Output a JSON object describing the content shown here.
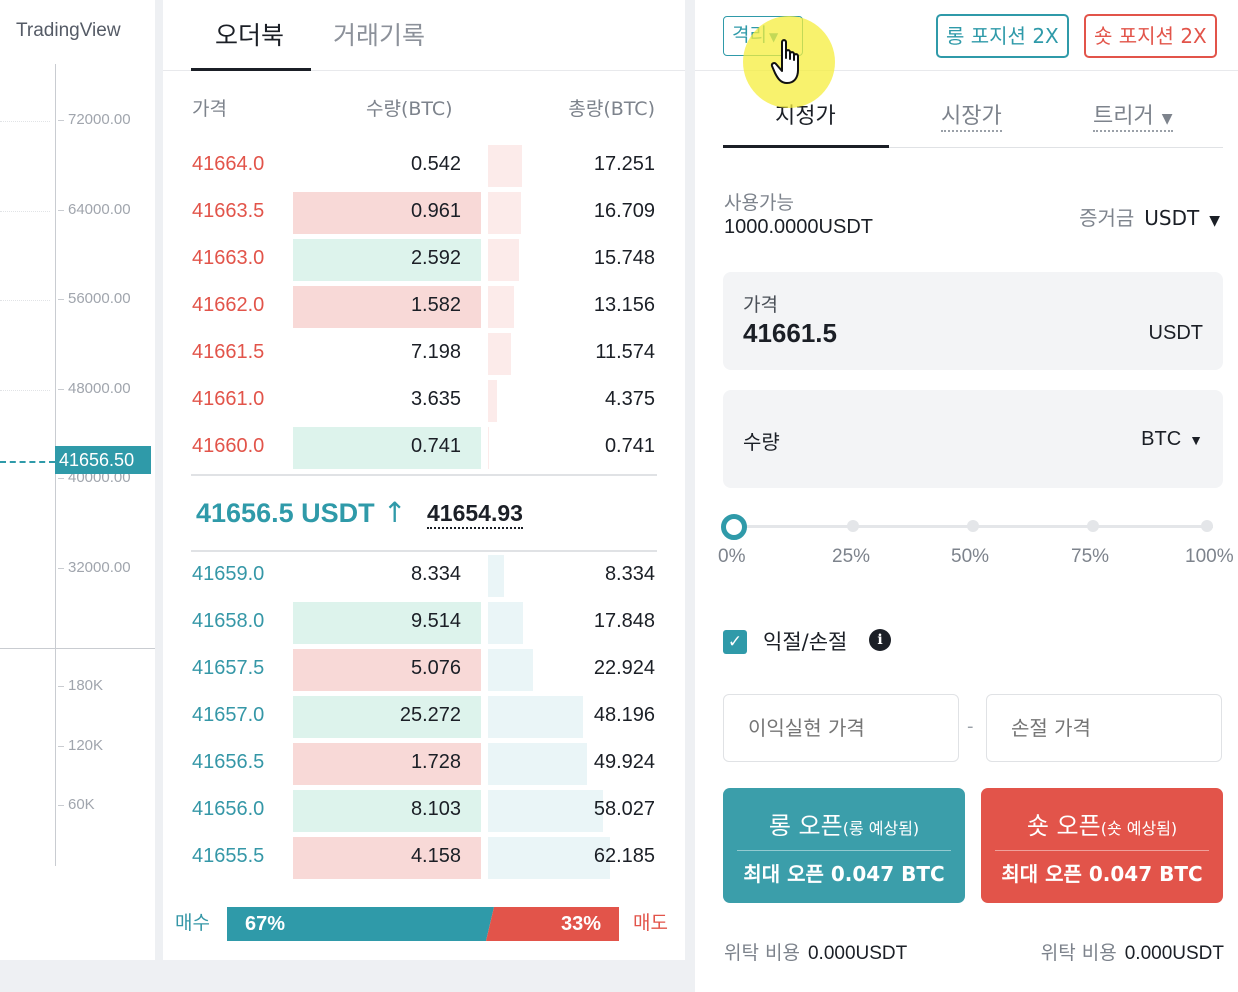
{
  "chart": {
    "brand": "TradingView",
    "price_ticks": [
      "72000.00",
      "64000.00",
      "56000.00",
      "48000.00",
      "40000.00",
      "32000.00"
    ],
    "volume_ticks": [
      "180K",
      "120K",
      "60K"
    ],
    "current_price": "41656.50"
  },
  "orderbook": {
    "tabs": [
      "오더북",
      "거래기록"
    ],
    "headers": {
      "price": "가격",
      "qty": "수량(BTC)",
      "total": "총량(BTC)"
    },
    "asks": [
      {
        "price": "41664.0",
        "qty": "0.542",
        "total": "17.251",
        "depth": 0.28,
        "hl": ""
      },
      {
        "price": "41663.5",
        "qty": "0.961",
        "total": "16.709",
        "depth": 0.27,
        "hl": "red"
      },
      {
        "price": "41663.0",
        "qty": "2.592",
        "total": "15.748",
        "depth": 0.25,
        "hl": "green"
      },
      {
        "price": "41662.0",
        "qty": "1.582",
        "total": "13.156",
        "depth": 0.21,
        "hl": "red"
      },
      {
        "price": "41661.5",
        "qty": "7.198",
        "total": "11.574",
        "depth": 0.19,
        "hl": ""
      },
      {
        "price": "41661.0",
        "qty": "3.635",
        "total": "4.375",
        "depth": 0.07,
        "hl": ""
      },
      {
        "price": "41660.0",
        "qty": "0.741",
        "total": "0.741",
        "depth": 0.01,
        "hl": "green"
      }
    ],
    "mid_price": "41656.5 USDT",
    "mark_price": "41654.93",
    "bids": [
      {
        "price": "41659.0",
        "qty": "8.334",
        "total": "8.334",
        "depth": 0.13,
        "hl": ""
      },
      {
        "price": "41658.0",
        "qty": "9.514",
        "total": "17.848",
        "depth": 0.29,
        "hl": "green"
      },
      {
        "price": "41657.5",
        "qty": "5.076",
        "total": "22.924",
        "depth": 0.37,
        "hl": "red"
      },
      {
        "price": "41657.0",
        "qty": "25.272",
        "total": "48.196",
        "depth": 0.78,
        "hl": "green"
      },
      {
        "price": "41656.5",
        "qty": "1.728",
        "total": "49.924",
        "depth": 0.81,
        "hl": "red"
      },
      {
        "price": "41656.0",
        "qty": "8.103",
        "total": "58.027",
        "depth": 0.94,
        "hl": "green"
      },
      {
        "price": "41655.5",
        "qty": "4.158",
        "total": "62.185",
        "depth": 1.0,
        "hl": "red"
      }
    ],
    "ratio": {
      "buy_label": "매수",
      "buy_pct": "67%",
      "buy_value": 0.67,
      "sell_pct": "33%",
      "sell_label": "매도"
    }
  },
  "form": {
    "margin_mode": "격리",
    "long_leverage": "롱 포지션 2X",
    "short_leverage": "숏 포지션 2X",
    "order_tabs": {
      "limit": "지정가",
      "market": "시장가",
      "trigger": "트리거"
    },
    "available_label": "사용가능",
    "available_value": "1000.0000USDT",
    "margin_label": "증거금",
    "margin_asset": "USDT",
    "price_label": "가격",
    "price_value": "41661.5",
    "price_unit": "USDT",
    "qty_label": "수량",
    "qty_unit": "BTC",
    "slider_value": 0,
    "pct_labels": [
      "0%",
      "25%",
      "50%",
      "75%",
      "100%"
    ],
    "tpsl_label": "익절/손절",
    "tpsl_checked": true,
    "tp_placeholder": "이익실현 가격",
    "sl_placeholder": "손절 가격",
    "long_open": {
      "title": "롱 오픈",
      "sub": "(롱 예상됨)",
      "max": "최대 오픈 0.047 BTC"
    },
    "short_open": {
      "title": "숏 오픈",
      "sub": "(숏 예상됨)",
      "max": "최대 오픈 0.047 BTC"
    },
    "fee_label": "위탁 비용",
    "fee_long": "0.000USDT",
    "fee_short": "0.000USDT"
  },
  "colors": {
    "buy": "#2f9aa9",
    "sell": "#e2544a"
  }
}
